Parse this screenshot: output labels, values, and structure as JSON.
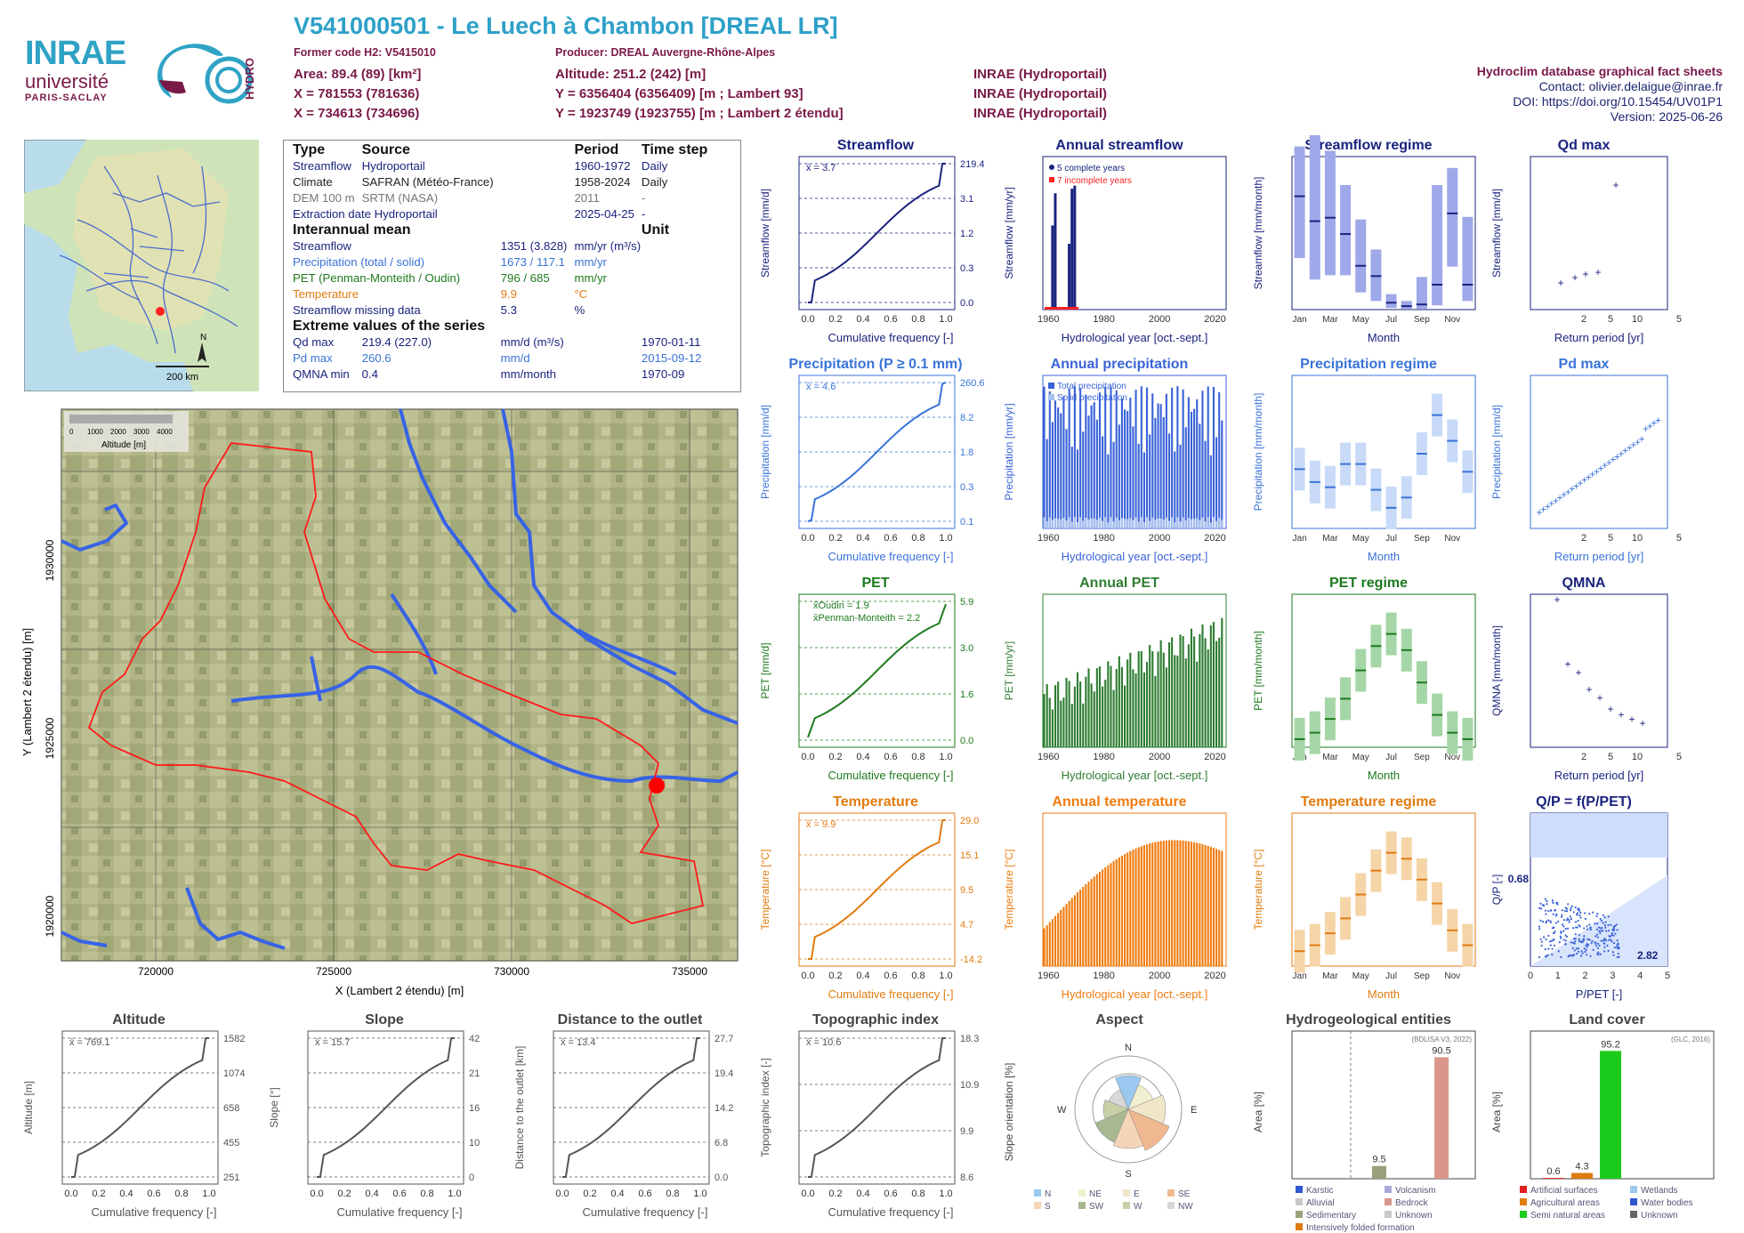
{
  "header": {
    "title": "V541000501 - Le Luech à Chambon [DREAL LR]",
    "former_code": "Former code H2: V5415010",
    "producer": "Producer: DREAL Auvergne-Rhône-Alpes",
    "area": "Area: 89.4 (89) [km²]",
    "x93": "X = 781553 (781636)",
    "x2e": "X = 734613 (734696)",
    "altitude": "Altitude: 251.2 (242) [m]",
    "y93": "Y = 6356404 (6356409) [m ; Lambert 93]",
    "y2e": "Y = 1923749 (1923755) [m ; Lambert 2 étendu]",
    "src1": "INRAE (Hydroportail)",
    "src2": "INRAE (Hydroportail)",
    "src3": "INRAE (Hydroportail)"
  },
  "logos": {
    "inrae": "INRAE",
    "univ": "université",
    "paris": "PARIS-SACLAY",
    "hydro": "HYDRO"
  },
  "right_block": {
    "db": "Hydroclim database graphical fact sheets",
    "contact": "Contact: olivier.delaigue@inrae.fr",
    "doi": "DOI: https://doi.org/10.15454/UV01P1",
    "version": "Version: 2025-06-26"
  },
  "minimap": {
    "scale": "200 km",
    "north": "N"
  },
  "info": {
    "h_type": "Type",
    "h_source": "Source",
    "h_period": "Period",
    "h_step": "Time step",
    "rows": [
      {
        "type": "Streamflow",
        "source": "Hydroportail",
        "period": "1960-1972",
        "step": "Daily"
      },
      {
        "type": "Climate",
        "source": "SAFRAN (Météo-France)",
        "period": "1958-2024",
        "step": "Daily"
      },
      {
        "type": "DEM 100 m",
        "source": "SRTM (NASA)",
        "period": "2011",
        "step": "-"
      },
      {
        "type": "Extraction date",
        "source": "Hydroportail",
        "period": "2025-04-25",
        "step": "-"
      }
    ],
    "h_mean": "Interannual mean",
    "h_unit": "Unit",
    "means": [
      {
        "name": "Streamflow",
        "value": "1351 (3.828)",
        "unit": "mm/yr (m³/s)"
      },
      {
        "name": "Precipitation (total / solid)",
        "value": "1673 / 117.1",
        "unit": "mm/yr"
      },
      {
        "name": "PET (Penman-Monteith / Oudin)",
        "value": "796 / 685",
        "unit": "mm/yr"
      },
      {
        "name": "Temperature",
        "value": "9.9",
        "unit": "°C"
      },
      {
        "name": "Streamflow missing data",
        "value": "5.3",
        "unit": "%"
      }
    ],
    "h_ext": "Extreme values of the series",
    "extremes": [
      {
        "name": "Qd max",
        "value": "219.4 (227.0)",
        "unit": "mm/d (m³/s)",
        "date": "1970-01-11"
      },
      {
        "name": "Pd max",
        "value": "260.6",
        "unit": "mm/d",
        "date": "2015-09-12"
      },
      {
        "name": "QMNA min",
        "value": "0.4",
        "unit": "mm/month",
        "date": "1970-09"
      }
    ]
  },
  "map": {
    "legend_title": "Altitude [m]",
    "legend_ticks": [
      "0",
      "1000",
      "2000",
      "3000",
      "4000"
    ],
    "xlabel": "X (Lambert 2 étendu) [m]",
    "ylabel": "Y (Lambert 2 étendu) [m]",
    "xticks": [
      "720000",
      "725000",
      "730000",
      "735000"
    ],
    "yticks": [
      "1920000",
      "1925000",
      "1930000"
    ]
  },
  "chart_data": [
    {
      "id": "streamflow_cdf",
      "type": "line",
      "title": "Streamflow",
      "xlabel": "Cumulative frequency [-]",
      "ylabel": "Streamflow [mm/d]",
      "xlim": [
        0,
        1
      ],
      "x": [
        0,
        0.05,
        0.1,
        0.25,
        0.4,
        0.5,
        0.6,
        0.75,
        0.9,
        0.98,
        1.0
      ],
      "y": [
        0.02,
        0.1,
        0.18,
        0.3,
        0.6,
        1.2,
        1.6,
        3.1,
        6,
        30,
        219.4
      ],
      "right_labels": [
        "219.4",
        "3.1",
        "1.2",
        "0.3",
        "0.0"
      ],
      "mean_label": "x̄ = 3.7"
    },
    {
      "id": "annual_streamflow",
      "type": "bar",
      "title": "Annual streamflow",
      "xlabel": "Hydrological year [oct.-sept.]",
      "ylabel": "Streamflow [mm/yr]",
      "ylim": [
        0,
        2000
      ],
      "x": [
        1961,
        1962,
        1967,
        1968,
        1969
      ],
      "values": [
        1100,
        1520,
        860,
        1580,
        1620
      ],
      "legend": [
        "5 complete years",
        "7 incomplete years"
      ]
    },
    {
      "id": "streamflow_regime",
      "type": "box",
      "title": "Streamflow regime",
      "xlabel": "Month",
      "ylabel": "Streamflow [mm/month]",
      "ylabel2": "Streamflow [m³/s]",
      "ylim": [
        0,
        200
      ],
      "categories": [
        "Jan",
        "Feb",
        "Mar",
        "Apr",
        "May",
        "Jun",
        "Jul",
        "Aug",
        "Sep",
        "Oct",
        "Nov",
        "Dec"
      ],
      "median": [
        132,
        103,
        107,
        88,
        51,
        39,
        8,
        4,
        6,
        29,
        112,
        29
      ],
      "low": [
        60,
        35,
        40,
        40,
        20,
        10,
        2,
        1,
        1,
        5,
        50,
        10
      ],
      "high": [
        190,
        215,
        185,
        145,
        105,
        70,
        18,
        10,
        38,
        145,
        165,
        108
      ]
    },
    {
      "id": "qd_max",
      "type": "scatter",
      "title": "Qd max",
      "xlabel": "Return period [yr]",
      "ylabel": "Streamflow [mm/d]",
      "x": [
        1.1,
        1.5,
        2.0,
        2.8,
        6.0
      ],
      "y": [
        48,
        55,
        62,
        65,
        220
      ]
    },
    {
      "id": "precip_cdf",
      "type": "line",
      "title": "Precipitation (P ≥ 0.1 mm)",
      "xlabel": "Cumulative frequency [-]",
      "ylabel": "Precipitation [mm/d]",
      "x": [
        0,
        0.1,
        0.25,
        0.5,
        0.75,
        0.9,
        1.0
      ],
      "y": [
        0.1,
        0.1,
        0.3,
        1.8,
        8.2,
        30,
        260.6
      ],
      "right_labels": [
        "260.6",
        "8.2",
        "1.8",
        "0.3",
        "0.1"
      ],
      "mean_label": "x̄ = 4.6"
    },
    {
      "id": "annual_precip",
      "type": "bar",
      "title": "Annual precipitation",
      "xlabel": "Hydrological year [oct.-sept.]",
      "ylabel": "Precipitation [mm/yr]",
      "legend": [
        "Total precipitation",
        "Solid precipitation"
      ]
    },
    {
      "id": "precip_regime",
      "type": "box",
      "title": "Precipitation regime",
      "xlabel": "Month",
      "ylabel": "Precipitation [mm/month]",
      "categories": [
        "Jan",
        "Feb",
        "Mar",
        "Apr",
        "May",
        "Jun",
        "Jul",
        "Aug",
        "Sep",
        "Oct",
        "Nov",
        "Dec"
      ],
      "median": [
        115,
        90,
        80,
        125,
        125,
        75,
        40,
        60,
        145,
        220,
        170,
        110
      ]
    },
    {
      "id": "pd_max",
      "type": "scatter",
      "title": "Pd max",
      "xlabel": "Return period [yr]",
      "ylabel": "Precipitation [mm/d]"
    },
    {
      "id": "pet_cdf",
      "type": "line",
      "title": "PET",
      "xlabel": "Cumulative frequency [-]",
      "ylabel": "PET [mm/d]",
      "right_labels": [
        "5.9",
        "3.0",
        "1.6",
        "0.0"
      ],
      "legend": [
        "x̄Oudin = 1.9",
        "x̄Penman-Monteith = 2.2"
      ]
    },
    {
      "id": "annual_pet",
      "type": "bar",
      "title": "Annual PET",
      "xlabel": "Hydrological year [oct.-sept.]",
      "ylabel": "PET [mm/yr]"
    },
    {
      "id": "pet_regime",
      "type": "box",
      "title": "PET regime",
      "xlabel": "Month",
      "ylabel": "PET [mm/month]",
      "categories": [
        "Jan",
        "Feb",
        "Mar",
        "Apr",
        "May",
        "Jun",
        "Jul",
        "Aug",
        "Sep",
        "Oct",
        "Nov",
        "Dec"
      ]
    },
    {
      "id": "qmna",
      "type": "scatter",
      "title": "QMNA",
      "xlabel": "Return period [yr]",
      "ylabel": "QMNA [mm/month]",
      "x": [
        1.1,
        1.3,
        1.5,
        1.8,
        2.2,
        2.8,
        3.5,
        5.5,
        10
      ],
      "y": [
        22.5,
        11,
        9.5,
        6.5,
        5,
        3,
        2,
        1.2,
        0.5
      ]
    },
    {
      "id": "temp_cdf",
      "type": "line",
      "title": "Temperature",
      "xlabel": "Cumulative frequency [-]",
      "ylabel": "Temperature [°C]",
      "right_labels": [
        "29.0",
        "15.1",
        "9.5",
        "4.7",
        "-14.2"
      ],
      "mean_label": "x̄ = 9.9"
    },
    {
      "id": "annual_temp",
      "type": "bar",
      "title": "Annual temperature",
      "xlabel": "Hydrological year [oct.-sept.]",
      "ylabel": "Temperature [°C]"
    },
    {
      "id": "temp_regime",
      "type": "box",
      "title": "Temperature regime",
      "xlabel": "Month",
      "ylabel": "Temperature [°C]",
      "categories": [
        "Jan",
        "Feb",
        "Mar",
        "Apr",
        "May",
        "Jun",
        "Jul",
        "Aug",
        "Sep",
        "Oct",
        "Nov",
        "Dec"
      ],
      "median": [
        2.5,
        3.5,
        5.5,
        8,
        12,
        16,
        19,
        18,
        14.5,
        10.5,
        6,
        3.5
      ]
    },
    {
      "id": "qp_ppet",
      "type": "scatter",
      "title": "Q/P = f(P/PET)",
      "xlabel": "P/PET [-]",
      "ylabel": "Q/P [-]",
      "labels": [
        "0.68",
        "2.82"
      ]
    },
    {
      "id": "altitude",
      "type": "line",
      "title": "Altitude",
      "xlabel": "Cumulative frequency [-]",
      "ylabel": "Altitude [m]",
      "right_labels": [
        "1582",
        "1074",
        "658",
        "455",
        "251"
      ],
      "mean_label": "x̄ = 769.1"
    },
    {
      "id": "slope",
      "type": "line",
      "title": "Slope",
      "xlabel": "Cumulative frequency [-]",
      "ylabel": "Slope [°]",
      "right_labels": [
        "42",
        "21",
        "16",
        "10",
        "0"
      ],
      "mean_label": "x̄ = 15.7"
    },
    {
      "id": "distance",
      "type": "line",
      "title": "Distance to the outlet",
      "xlabel": "Cumulative frequency [-]",
      "ylabel": "Distance to the outlet [km]",
      "right_labels": [
        "27.7",
        "19.4",
        "14.2",
        "6.8",
        "0.0"
      ],
      "mean_label": "x̄ = 13.4"
    },
    {
      "id": "topo",
      "type": "line",
      "title": "Topographic index",
      "xlabel": "Cumulative frequency [-]",
      "ylabel": "Topographic index [-]",
      "right_labels": [
        "18.3",
        "10.9",
        "9.9",
        "8.6"
      ],
      "mean_label": "x̄ = 10.6"
    },
    {
      "id": "aspect",
      "type": "pie",
      "title": "Aspect",
      "ylabel": "Slope orientation [%]",
      "legend": [
        "N",
        "NE",
        "E",
        "SE",
        "S",
        "SW",
        "W",
        "NW"
      ]
    },
    {
      "id": "hydrogeo",
      "type": "bar",
      "title": "Hydrogeological entities",
      "ylabel": "Area [%]",
      "source": "(BDLISA V3, 2022)",
      "values_labels": [
        "9.5",
        "90.5"
      ],
      "legend": [
        "Karstic",
        "Volcanism",
        "Alluvial",
        "Bedrock",
        "Sedimentary",
        "Unknown",
        "Intensively folded formation"
      ]
    },
    {
      "id": "landcover",
      "type": "bar",
      "title": "Land cover",
      "ylabel": "Area [%]",
      "source": "(GLC, 2016)",
      "values_labels": [
        "0.6",
        "4.3",
        "95.2"
      ],
      "legend": [
        "Artificial surfaces",
        "Wetlands",
        "Agricultural areas",
        "Water bodies",
        "Semi natural areas",
        "Unknown"
      ]
    }
  ]
}
